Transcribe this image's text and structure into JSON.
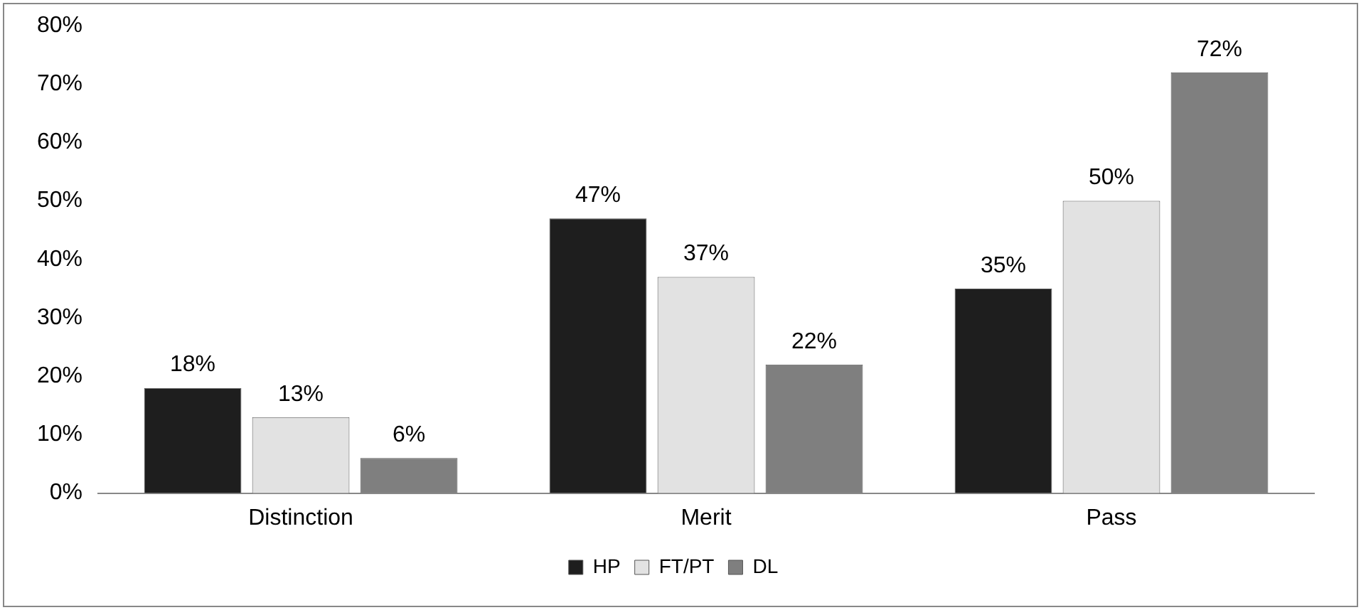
{
  "chart_data": {
    "type": "bar",
    "categories": [
      "Distinction",
      "Merit",
      "Pass"
    ],
    "series": [
      {
        "name": "HP",
        "color": "#1e1e1e",
        "values": [
          18,
          47,
          35
        ],
        "value_labels": [
          "18%",
          "47%",
          "35%"
        ]
      },
      {
        "name": "FT/PT",
        "color": "#e2e2e2",
        "values": [
          13,
          37,
          50
        ],
        "value_labels": [
          "13%",
          "37%",
          "50%"
        ]
      },
      {
        "name": "DL",
        "color": "#7f7f7f",
        "values": [
          6,
          22,
          72
        ],
        "value_labels": [
          "6%",
          "22%",
          "72%"
        ]
      }
    ],
    "ylim": [
      0,
      80
    ],
    "yticks": [
      {
        "value": 0,
        "label": "0%"
      },
      {
        "value": 10,
        "label": "10%"
      },
      {
        "value": 20,
        "label": "20%"
      },
      {
        "value": 30,
        "label": "30%"
      },
      {
        "value": 40,
        "label": "40%"
      },
      {
        "value": 50,
        "label": "50%"
      },
      {
        "value": 60,
        "label": "60%"
      },
      {
        "value": 70,
        "label": "70%"
      },
      {
        "value": 80,
        "label": "80%"
      }
    ],
    "grid": false,
    "legend": "bottom"
  }
}
